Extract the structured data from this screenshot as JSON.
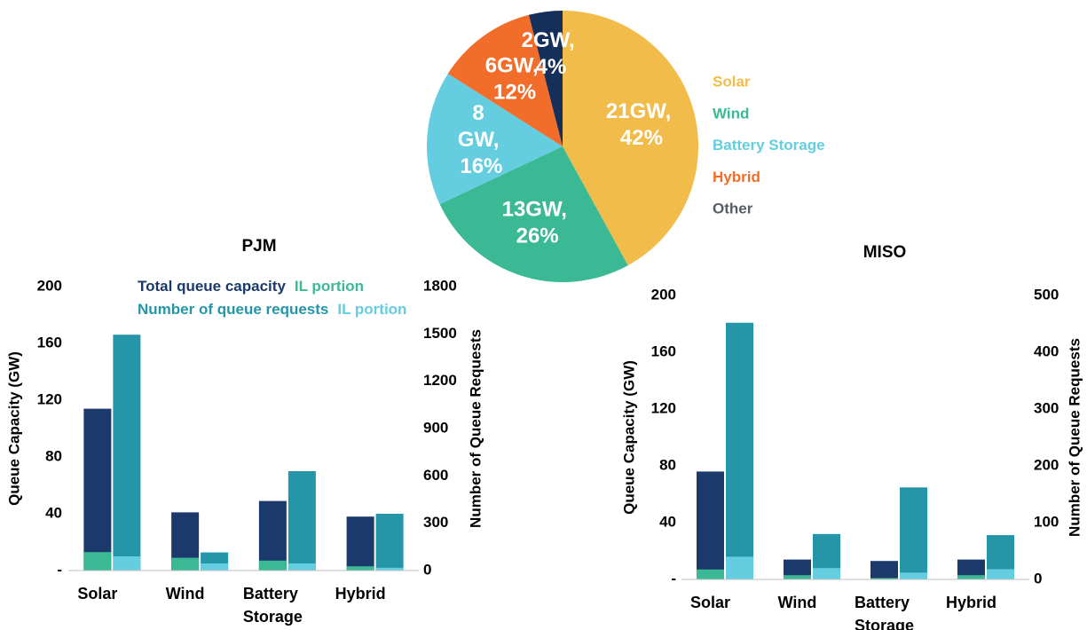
{
  "chart_data": [
    {
      "type": "pie",
      "categories": [
        "Solar",
        "Wind",
        "Battery Storage",
        "Hybrid",
        "Other"
      ],
      "values": [
        42,
        26,
        16,
        12,
        4
      ],
      "value_labels": [
        "21GW, 42%",
        "13GW, 26%",
        "8 GW, 16%",
        "6GW, 12%",
        "2GW, 4%"
      ],
      "colors": [
        "#f2bc4a",
        "#3bb995",
        "#64cde0",
        "#f26c2a",
        "#14305a"
      ],
      "legend_colors": [
        "#f2bc4a",
        "#3bb995",
        "#64cde0",
        "#f26c2a",
        "#555d66"
      ]
    },
    {
      "type": "bar",
      "title": "PJM",
      "categories": [
        "Solar",
        "Wind",
        "Battery Storage",
        "Hybrid"
      ],
      "ylabel": "Queue Capacity (GW)",
      "y2label": "Number of Queue Requests",
      "ylim": [
        0,
        200
      ],
      "yticks": [
        {
          "value": 0,
          "label": "-"
        },
        40,
        80,
        120,
        160,
        200
      ],
      "y2lim": [
        0,
        1800
      ],
      "y2ticks": [
        0,
        300,
        600,
        900,
        1200,
        1500,
        1800
      ],
      "series": [
        {
          "name": "Total queue capacity",
          "color": "#1b3a6b",
          "values": [
            114,
            41,
            49,
            38
          ]
        },
        {
          "name": "IL portion",
          "color": "#3bb995",
          "values": [
            13,
            9,
            7,
            3
          ]
        },
        {
          "name": "Number of queue requests",
          "color": "#2496a8",
          "axis": "y2",
          "values": [
            1495,
            115,
            630,
            360
          ]
        },
        {
          "name": "IL portion",
          "color": "#64cde0",
          "axis": "y2",
          "values": [
            90,
            45,
            45,
            18
          ]
        }
      ]
    },
    {
      "type": "bar",
      "title": "MISO",
      "categories": [
        "Solar",
        "Wind",
        "Battery Storage",
        "Hybrid"
      ],
      "ylabel": "Queue Capacity (GW)",
      "y2label": "Number of Queue Requests",
      "ylim": [
        0,
        200
      ],
      "yticks": [
        {
          "value": 0,
          "label": "-"
        },
        40,
        80,
        120,
        160,
        200
      ],
      "y2lim": [
        0,
        500
      ],
      "y2ticks": [
        0,
        100,
        200,
        300,
        400,
        500
      ],
      "series": [
        {
          "color": "#1b3a6b",
          "values": [
            76,
            14,
            13,
            14
          ]
        },
        {
          "color": "#3bb995",
          "values": [
            7,
            3,
            1,
            3
          ]
        },
        {
          "color": "#2496a8",
          "axis": "y2",
          "values": [
            452,
            80,
            162,
            78
          ]
        },
        {
          "color": "#64cde0",
          "axis": "y2",
          "values": [
            40,
            20,
            12,
            18
          ]
        }
      ]
    }
  ]
}
